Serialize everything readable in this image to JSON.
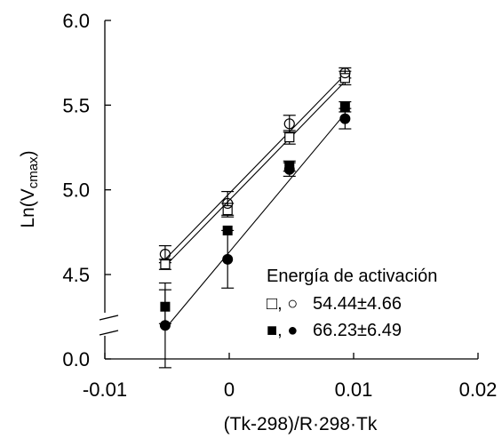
{
  "chart_data": {
    "type": "scatter",
    "xlabel": "(Tk-298)/R·298·Tk",
    "ylabel_main": "Ln(V",
    "ylabel_sub": "cmax",
    "ylabel_close": ")",
    "xlim": [
      -0.01,
      0.02
    ],
    "x_ticks": [
      -0.01,
      0,
      0.01,
      0.02
    ],
    "x_tick_labels": [
      "-0.01",
      "0",
      "0.01",
      "0.02"
    ],
    "y_tick_labels": [
      "6.0",
      "5.5",
      "5.0",
      "4.5",
      "0.0"
    ],
    "y_ticks": [
      6.0,
      5.5,
      5.0,
      4.5,
      0.0
    ],
    "y_axis_break": true,
    "y_break_range": [
      4.0,
      4.25
    ],
    "grid": false,
    "legend_position": "bottom-right",
    "legend_title": "Energía de activación",
    "legend_entries": [
      {
        "symbols": "□, ○",
        "label": "54.44±4.66"
      },
      {
        "symbols": "■, ●",
        "label": "66.23±6.49"
      }
    ],
    "series": [
      {
        "marker": "open-square",
        "points": [
          {
            "x": -0.00515,
            "y": 4.56,
            "err": 0.03
          },
          {
            "x": -0.00013,
            "y": 4.88,
            "err": 0.04
          },
          {
            "x": 0.00484,
            "y": 5.31,
            "err": 0.04
          },
          {
            "x": 0.00931,
            "y": 5.66,
            "err": 0.04
          }
        ]
      },
      {
        "marker": "open-circle",
        "points": [
          {
            "x": -0.00515,
            "y": 4.62,
            "err": 0.05
          },
          {
            "x": -0.00013,
            "y": 4.92,
            "err": 0.07
          },
          {
            "x": 0.00484,
            "y": 5.39,
            "err": 0.05
          },
          {
            "x": 0.00931,
            "y": 5.69,
            "err": 0.03
          }
        ]
      },
      {
        "marker": "filled-square",
        "points": [
          {
            "x": -0.00515,
            "y": 4.31,
            "err": 0.1
          },
          {
            "x": -0.00013,
            "y": 4.76,
            "err": 0.0
          },
          {
            "x": 0.00484,
            "y": 5.14,
            "err": 0.03
          },
          {
            "x": 0.00931,
            "y": 5.49,
            "err": 0.03
          }
        ]
      },
      {
        "marker": "filled-circle",
        "points": [
          {
            "x": -0.00515,
            "y": 4.2,
            "err": 0.25
          },
          {
            "x": -0.00013,
            "y": 4.59,
            "err": 0.17
          },
          {
            "x": 0.00484,
            "y": 5.12,
            "err": 0.04
          },
          {
            "x": 0.00931,
            "y": 5.42,
            "err": 0.06
          }
        ]
      }
    ],
    "fit_lines": [
      {
        "x": [
          -0.00515,
          0.00931
        ],
        "y": [
          4.59,
          5.68
        ]
      },
      {
        "x": [
          -0.00515,
          0.00931
        ],
        "y": [
          4.55,
          5.64
        ]
      },
      {
        "x": [
          -0.00515,
          0.00931
        ],
        "y": [
          4.18,
          5.45
        ]
      }
    ]
  }
}
